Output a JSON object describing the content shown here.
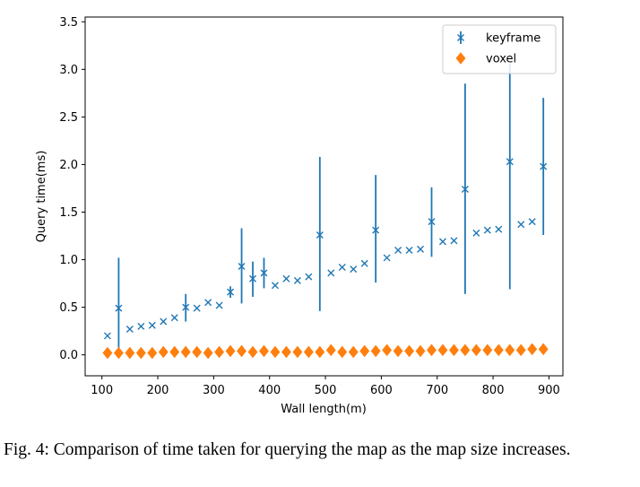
{
  "chart_data": {
    "type": "scatter",
    "title": "",
    "xlabel": "Wall length(m)",
    "ylabel": "Query time(ms)",
    "xlim": [
      70,
      925
    ],
    "ylim": [
      -0.22,
      3.55
    ],
    "xticks": [
      100,
      200,
      300,
      400,
      500,
      600,
      700,
      800,
      900
    ],
    "yticks": [
      0.0,
      0.5,
      1.0,
      1.5,
      2.0,
      2.5,
      3.0,
      3.5
    ],
    "xtick_labels": [
      "100",
      "200",
      "300",
      "400",
      "500",
      "600",
      "700",
      "800",
      "900"
    ],
    "ytick_labels": [
      "0.0",
      "0.5",
      "1.0",
      "1.5",
      "2.0",
      "2.5",
      "3.0",
      "3.5"
    ],
    "grid": false,
    "legend_position": "top-right",
    "colors": {
      "keyframe": "#1f77b4",
      "voxel": "#ff7f0e"
    },
    "series": [
      {
        "name": "keyframe",
        "marker": "x",
        "x": [
          110,
          130,
          150,
          170,
          190,
          210,
          230,
          250,
          270,
          290,
          310,
          330,
          350,
          370,
          390,
          410,
          430,
          450,
          470,
          490,
          510,
          530,
          550,
          570,
          590,
          610,
          630,
          650,
          670,
          690,
          710,
          730,
          750,
          770,
          790,
          810,
          830,
          850,
          870,
          890
        ],
        "y": [
          0.2,
          0.49,
          0.27,
          0.3,
          0.31,
          0.35,
          0.39,
          0.5,
          0.49,
          0.55,
          0.52,
          0.66,
          0.93,
          0.8,
          0.86,
          0.73,
          0.8,
          0.78,
          0.82,
          1.26,
          0.86,
          0.92,
          0.9,
          0.96,
          1.31,
          1.02,
          1.1,
          1.1,
          1.11,
          1.4,
          1.19,
          1.2,
          1.74,
          1.28,
          1.31,
          1.32,
          2.03,
          1.37,
          1.4,
          1.98
        ],
        "err_low": [
          0.2,
          0.03,
          0.27,
          0.3,
          0.31,
          0.35,
          0.39,
          0.35,
          0.49,
          0.55,
          0.52,
          0.6,
          0.54,
          0.61,
          0.7,
          0.73,
          0.8,
          0.78,
          0.82,
          0.46,
          0.86,
          0.92,
          0.9,
          0.96,
          0.76,
          1.02,
          1.1,
          1.1,
          1.11,
          1.03,
          1.19,
          1.2,
          0.64,
          1.28,
          1.31,
          1.32,
          0.69,
          1.37,
          1.4,
          1.26
        ],
        "err_high": [
          0.2,
          1.02,
          0.27,
          0.3,
          0.31,
          0.35,
          0.39,
          0.64,
          0.49,
          0.55,
          0.52,
          0.72,
          1.33,
          0.98,
          1.02,
          0.73,
          0.8,
          0.78,
          0.82,
          2.08,
          0.86,
          0.92,
          0.9,
          0.96,
          1.89,
          1.02,
          1.1,
          1.1,
          1.11,
          1.76,
          1.19,
          1.2,
          2.85,
          1.28,
          1.31,
          1.32,
          3.06,
          1.37,
          1.4,
          2.7
        ]
      },
      {
        "name": "voxel",
        "marker": "diamond",
        "x": [
          110,
          130,
          150,
          170,
          190,
          210,
          230,
          250,
          270,
          290,
          310,
          330,
          350,
          370,
          390,
          410,
          430,
          450,
          470,
          490,
          510,
          530,
          550,
          570,
          590,
          610,
          630,
          650,
          670,
          690,
          710,
          730,
          750,
          770,
          790,
          810,
          830,
          850,
          870,
          890
        ],
        "y": [
          0.02,
          0.02,
          0.02,
          0.02,
          0.02,
          0.03,
          0.03,
          0.03,
          0.03,
          0.02,
          0.03,
          0.04,
          0.04,
          0.03,
          0.04,
          0.03,
          0.03,
          0.03,
          0.03,
          0.03,
          0.05,
          0.03,
          0.03,
          0.04,
          0.04,
          0.05,
          0.04,
          0.04,
          0.04,
          0.05,
          0.05,
          0.05,
          0.05,
          0.05,
          0.05,
          0.05,
          0.05,
          0.05,
          0.06,
          0.06
        ]
      }
    ]
  },
  "caption": "Fig. 4: Comparison of time taken for querying the map as the map size increases."
}
